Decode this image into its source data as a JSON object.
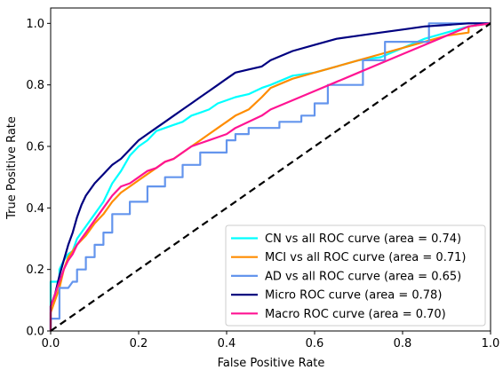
{
  "chart_data": {
    "type": "line",
    "title": "",
    "xlabel": "False Positive Rate",
    "ylabel": "True Positive Rate",
    "xlim": [
      0.0,
      1.0
    ],
    "ylim": [
      0.0,
      1.05
    ],
    "xticks": [
      "0.0",
      "0.2",
      "0.4",
      "0.6",
      "0.8",
      "1.0"
    ],
    "yticks": [
      "0.0",
      "0.2",
      "0.4",
      "0.6",
      "0.8",
      "1.0"
    ],
    "grid": false,
    "legend_position": "lower-right",
    "series": [
      {
        "name": "CN vs all ROC curve (area = 0.74)",
        "color": "#00ffff",
        "x": [
          0.0,
          0.0,
          0.02,
          0.02,
          0.03,
          0.04,
          0.05,
          0.06,
          0.08,
          0.1,
          0.12,
          0.14,
          0.16,
          0.18,
          0.2,
          0.22,
          0.24,
          0.26,
          0.28,
          0.3,
          0.32,
          0.34,
          0.36,
          0.38,
          0.4,
          0.42,
          0.45,
          0.48,
          0.5,
          0.55,
          0.6,
          0.65,
          0.7,
          0.75,
          0.8,
          0.85,
          0.9,
          0.95,
          1.0
        ],
        "y": [
          0.0,
          0.16,
          0.16,
          0.2,
          0.23,
          0.25,
          0.26,
          0.3,
          0.34,
          0.38,
          0.42,
          0.48,
          0.52,
          0.57,
          0.6,
          0.62,
          0.65,
          0.66,
          0.67,
          0.68,
          0.7,
          0.71,
          0.72,
          0.74,
          0.75,
          0.76,
          0.77,
          0.79,
          0.8,
          0.83,
          0.84,
          0.86,
          0.88,
          0.89,
          0.92,
          0.95,
          0.97,
          0.99,
          1.0
        ]
      },
      {
        "name": "MCI vs all ROC curve (area = 0.71)",
        "color": "#ff8c00",
        "x": [
          0.0,
          0.0,
          0.02,
          0.03,
          0.04,
          0.05,
          0.06,
          0.08,
          0.1,
          0.12,
          0.14,
          0.16,
          0.18,
          0.2,
          0.22,
          0.24,
          0.26,
          0.28,
          0.3,
          0.32,
          0.34,
          0.36,
          0.38,
          0.4,
          0.42,
          0.45,
          0.48,
          0.5,
          0.55,
          0.6,
          0.65,
          0.7,
          0.75,
          0.8,
          0.85,
          0.9,
          0.95,
          0.95,
          1.0
        ],
        "y": [
          0.0,
          0.06,
          0.14,
          0.2,
          0.24,
          0.26,
          0.28,
          0.31,
          0.35,
          0.38,
          0.42,
          0.45,
          0.47,
          0.49,
          0.51,
          0.53,
          0.55,
          0.56,
          0.58,
          0.6,
          0.62,
          0.64,
          0.66,
          0.68,
          0.7,
          0.72,
          0.76,
          0.79,
          0.82,
          0.84,
          0.86,
          0.88,
          0.9,
          0.92,
          0.94,
          0.96,
          0.97,
          0.99,
          1.0
        ]
      },
      {
        "name": "AD vs all ROC curve (area = 0.65)",
        "color": "#6495ed",
        "x": [
          0.0,
          0.0,
          0.02,
          0.02,
          0.04,
          0.05,
          0.06,
          0.06,
          0.08,
          0.08,
          0.1,
          0.1,
          0.12,
          0.12,
          0.14,
          0.14,
          0.18,
          0.18,
          0.22,
          0.22,
          0.26,
          0.26,
          0.3,
          0.3,
          0.34,
          0.34,
          0.4,
          0.4,
          0.42,
          0.42,
          0.45,
          0.45,
          0.52,
          0.52,
          0.57,
          0.57,
          0.6,
          0.6,
          0.63,
          0.63,
          0.71,
          0.71,
          0.76,
          0.76,
          0.86,
          0.86,
          1.0
        ],
        "y": [
          0.0,
          0.04,
          0.04,
          0.14,
          0.14,
          0.16,
          0.16,
          0.2,
          0.2,
          0.24,
          0.24,
          0.28,
          0.28,
          0.32,
          0.32,
          0.38,
          0.38,
          0.42,
          0.42,
          0.47,
          0.47,
          0.5,
          0.5,
          0.54,
          0.54,
          0.58,
          0.58,
          0.62,
          0.62,
          0.64,
          0.64,
          0.66,
          0.66,
          0.68,
          0.68,
          0.7,
          0.7,
          0.74,
          0.74,
          0.8,
          0.8,
          0.88,
          0.88,
          0.94,
          0.94,
          1.0,
          1.0
        ]
      },
      {
        "name": "Micro ROC curve (area = 0.78)",
        "color": "#000080",
        "x": [
          0.0,
          0.0,
          0.01,
          0.02,
          0.03,
          0.04,
          0.05,
          0.06,
          0.07,
          0.08,
          0.1,
          0.12,
          0.14,
          0.16,
          0.18,
          0.2,
          0.22,
          0.24,
          0.26,
          0.28,
          0.3,
          0.32,
          0.34,
          0.36,
          0.38,
          0.4,
          0.42,
          0.45,
          0.48,
          0.5,
          0.55,
          0.6,
          0.65,
          0.7,
          0.75,
          0.8,
          0.85,
          0.9,
          0.95,
          1.0
        ],
        "y": [
          0.0,
          0.08,
          0.12,
          0.18,
          0.23,
          0.28,
          0.32,
          0.37,
          0.41,
          0.44,
          0.48,
          0.51,
          0.54,
          0.56,
          0.59,
          0.62,
          0.64,
          0.66,
          0.68,
          0.7,
          0.72,
          0.74,
          0.76,
          0.78,
          0.8,
          0.82,
          0.84,
          0.85,
          0.86,
          0.88,
          0.91,
          0.93,
          0.95,
          0.96,
          0.97,
          0.98,
          0.99,
          0.995,
          1.0,
          1.0
        ]
      },
      {
        "name": "Macro ROC curve (area = 0.70)",
        "color": "#ff1493",
        "x": [
          0.0,
          0.0,
          0.01,
          0.02,
          0.03,
          0.04,
          0.05,
          0.06,
          0.08,
          0.1,
          0.12,
          0.14,
          0.16,
          0.18,
          0.2,
          0.22,
          0.24,
          0.26,
          0.28,
          0.3,
          0.32,
          0.34,
          0.36,
          0.38,
          0.4,
          0.42,
          0.45,
          0.48,
          0.5,
          0.55,
          0.6,
          0.65,
          0.7,
          0.75,
          0.8,
          0.85,
          0.9,
          0.95,
          1.0
        ],
        "y": [
          0.0,
          0.08,
          0.12,
          0.16,
          0.2,
          0.23,
          0.25,
          0.28,
          0.32,
          0.36,
          0.4,
          0.44,
          0.47,
          0.48,
          0.5,
          0.52,
          0.53,
          0.55,
          0.56,
          0.58,
          0.6,
          0.61,
          0.62,
          0.63,
          0.64,
          0.66,
          0.68,
          0.7,
          0.72,
          0.75,
          0.78,
          0.81,
          0.84,
          0.87,
          0.9,
          0.93,
          0.96,
          0.99,
          1.0
        ]
      }
    ],
    "reference_line": {
      "x": [
        0.0,
        1.0
      ],
      "y": [
        0.0,
        1.0
      ],
      "color": "#000000",
      "style": "dashed"
    }
  }
}
